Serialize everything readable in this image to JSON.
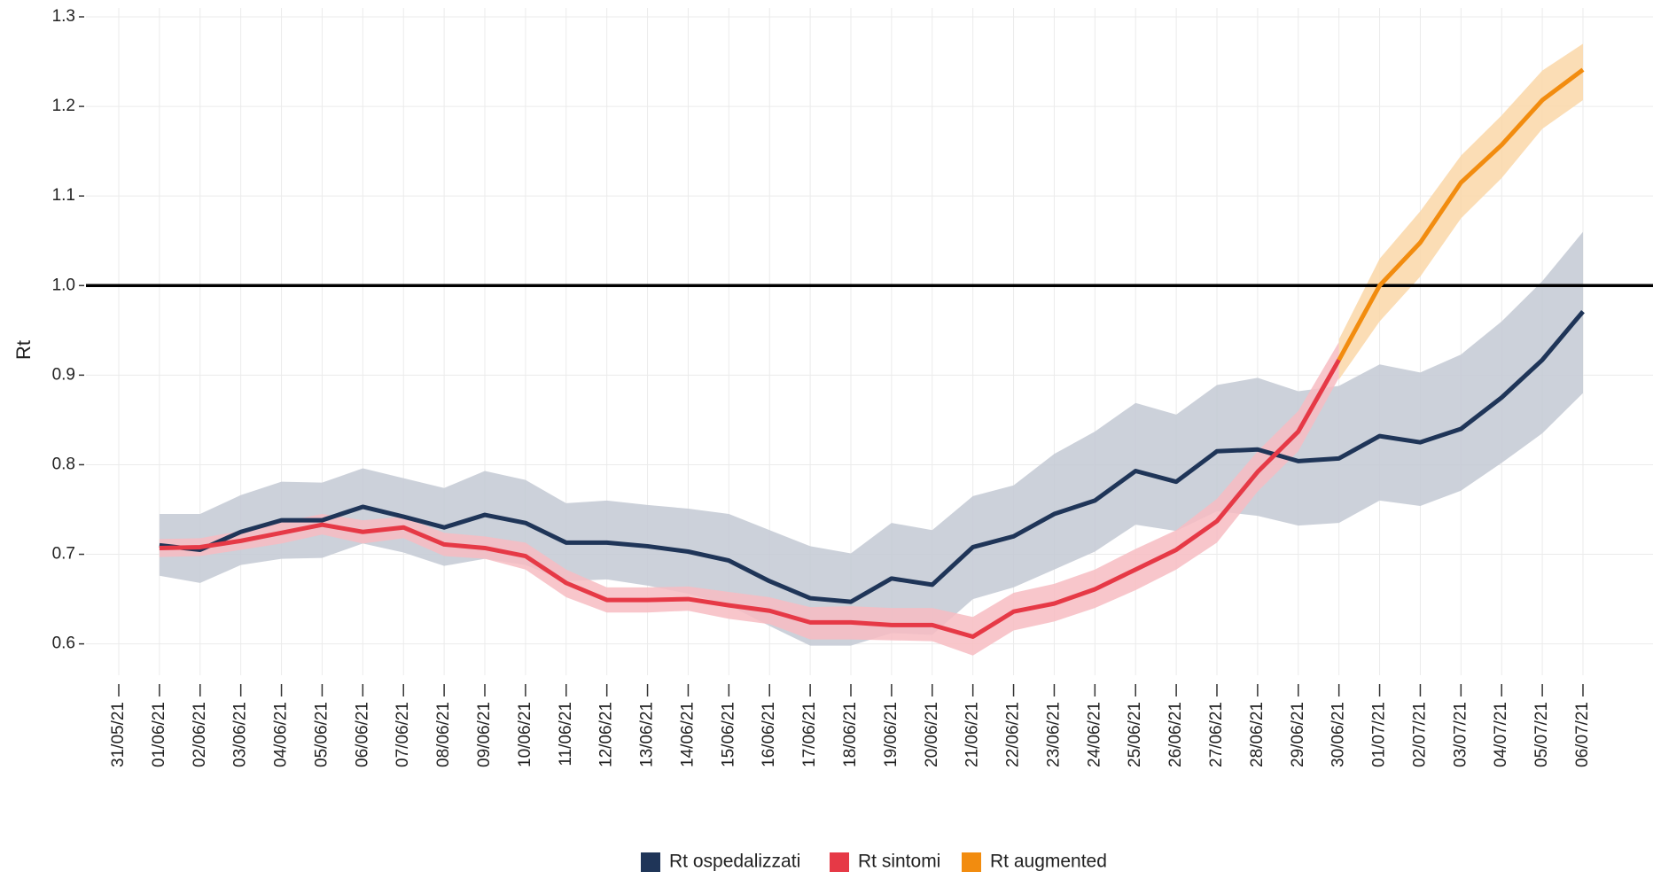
{
  "chart_data": {
    "type": "line",
    "y_label": "Rt",
    "categories": [
      "31/05/21",
      "01/06/21",
      "02/06/21",
      "03/06/21",
      "04/06/21",
      "05/06/21",
      "06/06/21",
      "07/06/21",
      "08/06/21",
      "09/06/21",
      "10/06/21",
      "11/06/21",
      "12/06/21",
      "13/06/21",
      "14/06/21",
      "15/06/21",
      "16/06/21",
      "17/06/21",
      "18/06/21",
      "19/06/21",
      "20/06/21",
      "21/06/21",
      "22/06/21",
      "23/06/21",
      "24/06/21",
      "25/06/21",
      "26/06/21",
      "27/06/21",
      "28/06/21",
      "29/06/21",
      "30/06/21",
      "01/07/21",
      "02/07/21",
      "03/07/21",
      "04/07/21",
      "05/07/21",
      "06/07/21"
    ],
    "series": [
      {
        "name": "Rt ospedalizzati",
        "color": "#1f3558",
        "band_color": "#c3c9d3",
        "values": [
          null,
          0.71,
          0.705,
          0.725,
          0.738,
          0.738,
          0.753,
          0.742,
          0.73,
          0.744,
          0.735,
          0.713,
          0.713,
          0.709,
          0.703,
          0.693,
          0.67,
          0.651,
          0.647,
          0.673,
          0.666,
          0.708,
          0.72,
          0.745,
          0.76,
          0.793,
          0.781,
          0.815,
          0.817,
          0.804,
          0.807,
          0.832,
          0.825,
          0.84,
          0.875,
          0.917,
          0.971
        ],
        "lower": [
          null,
          0.676,
          0.668,
          0.688,
          0.695,
          0.696,
          0.712,
          0.702,
          0.687,
          0.695,
          0.688,
          0.67,
          0.672,
          0.665,
          0.656,
          0.643,
          0.62,
          0.598,
          0.598,
          0.612,
          0.61,
          0.65,
          0.663,
          0.683,
          0.703,
          0.733,
          0.726,
          0.748,
          0.743,
          0.732,
          0.735,
          0.76,
          0.754,
          0.771,
          0.802,
          0.835,
          0.88
        ],
        "upper": [
          null,
          0.745,
          0.745,
          0.766,
          0.781,
          0.78,
          0.796,
          0.785,
          0.774,
          0.793,
          0.783,
          0.757,
          0.76,
          0.755,
          0.751,
          0.745,
          0.727,
          0.709,
          0.701,
          0.735,
          0.727,
          0.765,
          0.777,
          0.812,
          0.837,
          0.869,
          0.856,
          0.889,
          0.897,
          0.882,
          0.888,
          0.912,
          0.903,
          0.923,
          0.96,
          1.005,
          1.06
        ]
      },
      {
        "name": "Rt sintomi",
        "color": "#e63946",
        "band_color": "#f7bcc2",
        "values": [
          null,
          0.707,
          0.708,
          0.715,
          0.724,
          0.733,
          0.725,
          0.73,
          0.711,
          0.707,
          0.698,
          0.668,
          0.649,
          0.649,
          0.65,
          0.643,
          0.637,
          0.624,
          0.624,
          0.621,
          0.621,
          0.608,
          0.636,
          0.645,
          0.661,
          0.683,
          0.705,
          0.737,
          0.792,
          0.837,
          0.917,
          null,
          null,
          null,
          null,
          null,
          null
        ],
        "lower": [
          null,
          0.697,
          0.698,
          0.705,
          0.712,
          0.722,
          0.712,
          0.718,
          0.698,
          0.695,
          0.683,
          0.652,
          0.635,
          0.635,
          0.637,
          0.628,
          0.622,
          0.605,
          0.605,
          0.604,
          0.603,
          0.587,
          0.615,
          0.625,
          0.64,
          0.66,
          0.683,
          0.713,
          0.77,
          0.815,
          0.897,
          null,
          null,
          null,
          null,
          null,
          null
        ],
        "upper": [
          null,
          0.717,
          0.718,
          0.726,
          0.736,
          0.745,
          0.738,
          0.742,
          0.724,
          0.72,
          0.713,
          0.683,
          0.663,
          0.663,
          0.664,
          0.658,
          0.652,
          0.641,
          0.642,
          0.64,
          0.64,
          0.63,
          0.657,
          0.667,
          0.683,
          0.706,
          0.727,
          0.762,
          0.815,
          0.86,
          0.937,
          null,
          null,
          null,
          null,
          null,
          null
        ]
      },
      {
        "name": "Rt augmented",
        "color": "#f28c0f",
        "band_color": "#fad7a8",
        "values": [
          null,
          null,
          null,
          null,
          null,
          null,
          null,
          null,
          null,
          null,
          null,
          null,
          null,
          null,
          null,
          null,
          null,
          null,
          null,
          null,
          null,
          null,
          null,
          null,
          null,
          null,
          null,
          null,
          null,
          null,
          0.917,
          1.0,
          1.048,
          1.115,
          1.157,
          1.207,
          1.241
        ],
        "lower": [
          null,
          null,
          null,
          null,
          null,
          null,
          null,
          null,
          null,
          null,
          null,
          null,
          null,
          null,
          null,
          null,
          null,
          null,
          null,
          null,
          null,
          null,
          null,
          null,
          null,
          null,
          null,
          null,
          null,
          null,
          0.895,
          0.96,
          1.01,
          1.075,
          1.12,
          1.175,
          1.207
        ],
        "upper": [
          null,
          null,
          null,
          null,
          null,
          null,
          null,
          null,
          null,
          null,
          null,
          null,
          null,
          null,
          null,
          null,
          null,
          null,
          null,
          null,
          null,
          null,
          null,
          null,
          null,
          null,
          null,
          null,
          null,
          null,
          0.94,
          1.03,
          1.083,
          1.145,
          1.19,
          1.24,
          1.27
        ]
      }
    ],
    "hline": 1.0,
    "hline_color": "#000000",
    "ylim": [
      0.565,
      1.3
    ],
    "yticks": [
      {
        "value": 0.6,
        "label": "0.6"
      },
      {
        "value": 0.7,
        "label": "0.7"
      },
      {
        "value": 0.8,
        "label": "0.8"
      },
      {
        "value": 0.9,
        "label": "0.9"
      },
      {
        "value": 1.0,
        "label": "1.0"
      },
      {
        "value": 1.1,
        "label": "1.1"
      },
      {
        "value": 1.2,
        "label": "1.2"
      },
      {
        "value": 1.3,
        "label": "1.3"
      }
    ],
    "grid": true,
    "legend": "bottom"
  }
}
